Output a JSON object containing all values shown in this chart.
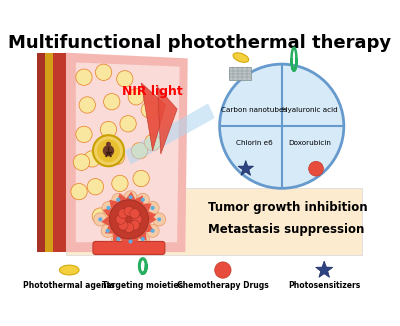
{
  "title": "Multifunctional photothermal therapy",
  "title_fontsize": 13,
  "title_fontweight": "bold",
  "bg_color": "#ffffff",
  "nir_text": "NIR light",
  "nir_color": "#ff0000",
  "tumor_inhibition": "Tumor growth inhibition",
  "metastasis": "Metastasis suppression",
  "circle_labels": [
    "Carbon nanotubes",
    "Hyaluronic acid",
    "Chlorin e6",
    "Doxorubicin"
  ],
  "legend_labels": [
    "Photothermal agents",
    "Targeting moieties",
    "Chemotherapy Drugs",
    "Photosensitizers"
  ],
  "bottom_panel_color": "#fdebd0",
  "circle_border": "#6699cc",
  "circle_fill": "#d6eaf8",
  "muscle_red": "#c0392b",
  "fat_yellow": "#f9e79f",
  "tissue_pink": "#f5b7b1",
  "inner_pink": "#fadbd8"
}
